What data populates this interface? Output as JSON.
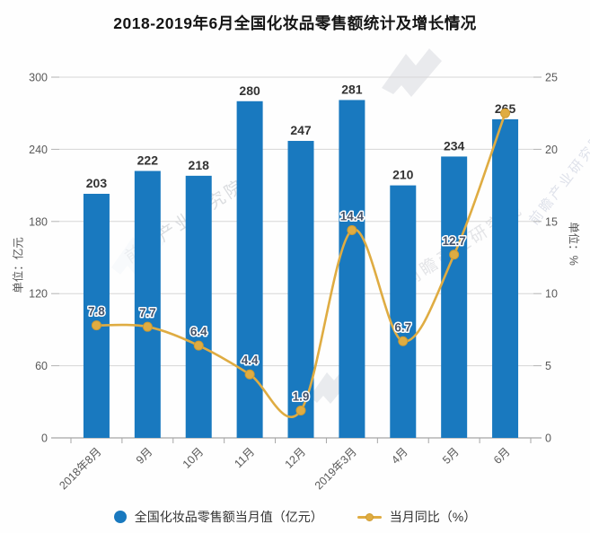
{
  "title": "2018-2019年6月全国化妆品零售额统计及增长情况",
  "watermark": {
    "text": "前瞻产业研究院"
  },
  "legend": {
    "bar_label": "全国化妆品零售额当月值（亿元）",
    "line_label": "当月同比（%）"
  },
  "chart_data": {
    "type": "combo bar+line",
    "categories": [
      "2018年8月",
      "9月",
      "10月",
      "11月",
      "12月",
      "2019年3月",
      "4月",
      "5月",
      "6月"
    ],
    "series": [
      {
        "name": "全国化妆品零售额当月值（亿元）",
        "type": "bar",
        "axis": "left",
        "color": "#1979bf",
        "values": [
          203,
          222,
          218,
          280,
          247,
          281,
          210,
          234,
          265
        ]
      },
      {
        "name": "当月同比（%）",
        "type": "line",
        "axis": "right",
        "color": "#dfac42",
        "values": [
          7.8,
          7.7,
          6.4,
          4.4,
          1.9,
          14.4,
          6.7,
          12.7,
          22.5
        ],
        "point_labels": [
          "7.8",
          "7.7",
          "6.4",
          "4.4",
          "1.9",
          "14.4",
          "6.7",
          "12.7",
          ""
        ]
      }
    ],
    "left_axis": {
      "title": "单位：亿元",
      "min": 0,
      "max": 300,
      "ticks": [
        0,
        60,
        120,
        180,
        240,
        300
      ]
    },
    "right_axis": {
      "title": "单位：%",
      "min": 0,
      "max": 25,
      "ticks": [
        0,
        5,
        10,
        15,
        20,
        25
      ]
    },
    "grid": "horizontal light-gray lines",
    "legend_position": "bottom"
  }
}
